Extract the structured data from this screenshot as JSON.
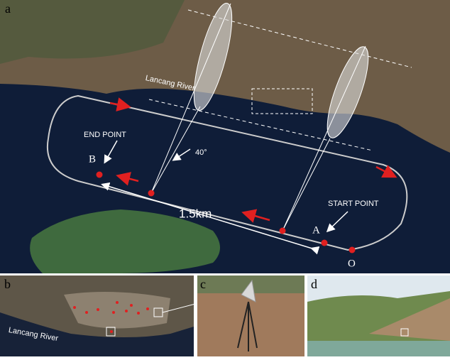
{
  "panel_a": {
    "label": "a",
    "river_label": "Lancang River",
    "end_point": "END POINT",
    "point_b": "B",
    "angle": "40°",
    "distance": "1.5km",
    "start_point": "START POINT",
    "point_a": "A",
    "point_o": "O"
  },
  "panel_b": {
    "label": "b",
    "river_label": "Lancang River"
  },
  "panel_c": {
    "label": "c"
  },
  "panel_d": {
    "label": "d"
  }
}
